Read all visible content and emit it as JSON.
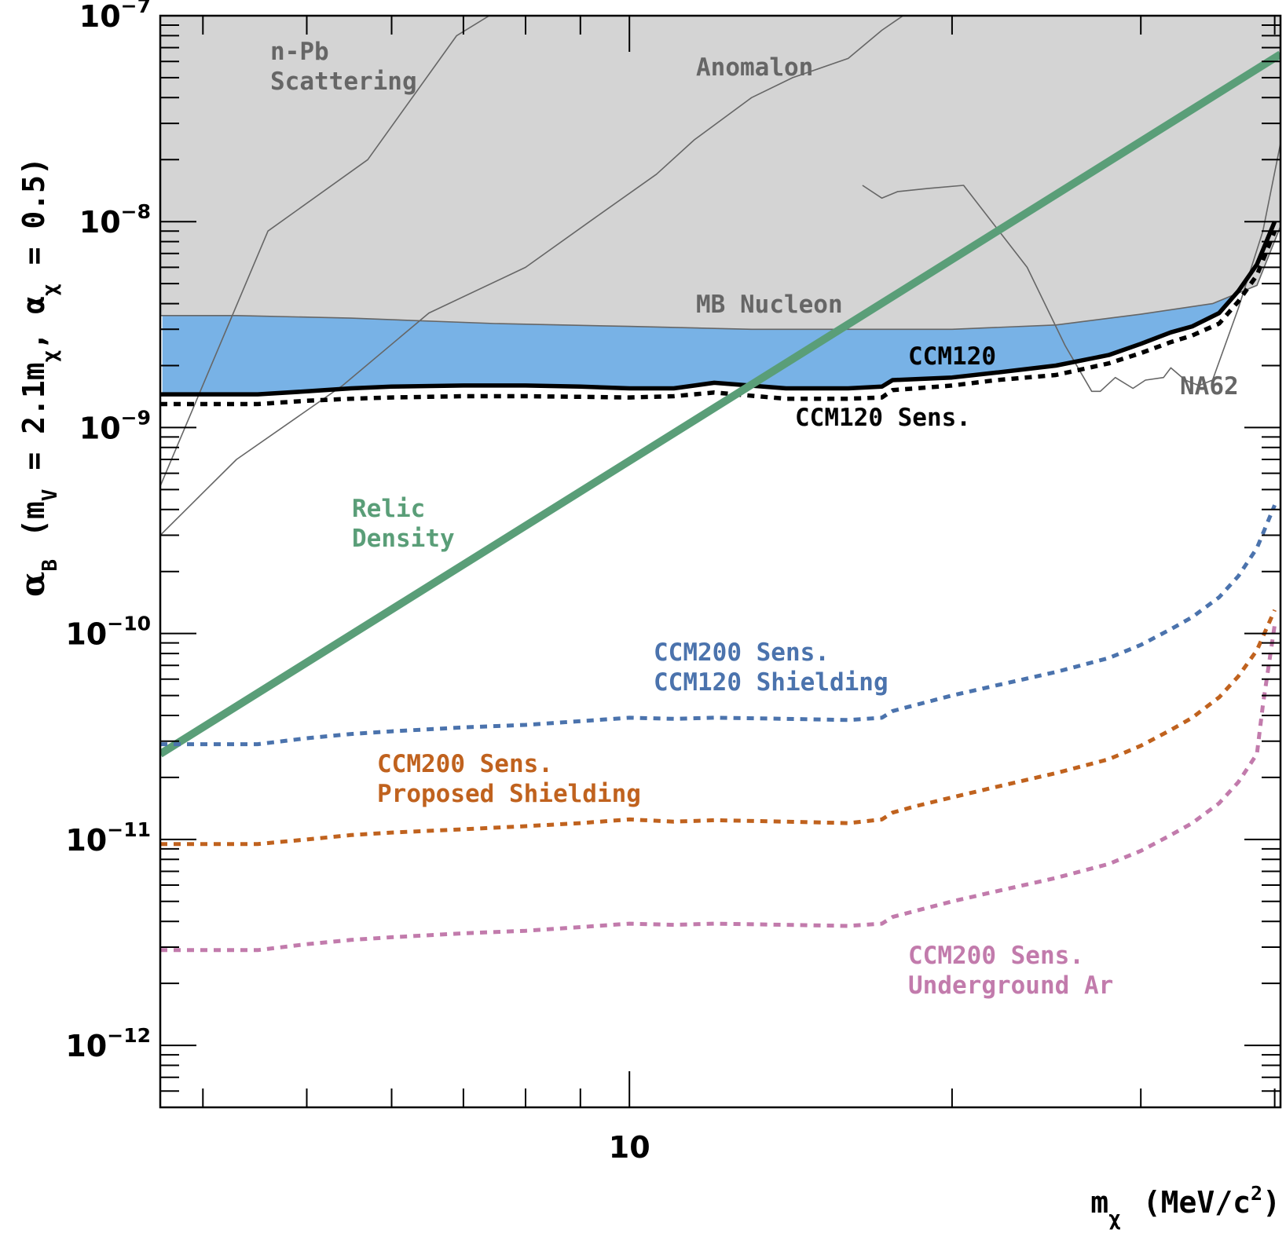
{
  "chart_data": {
    "type": "line",
    "title": "",
    "xlabel": "m",
    "xlabel_sub": "χ",
    "xlabel_units": "(MeV/c",
    "xlabel_units_sup": "2",
    "xlabel_units_end": ")",
    "ylabel_parts": {
      "alpha": "α",
      "alpha_sub": "B",
      "paren": "(m",
      "v_sub": "V",
      "middle": "= 2.1m",
      "chi_sub": "χ",
      "comma": ", α",
      "chi_sub2": "χ",
      "end": "= 0.5)"
    },
    "x_scale": "log",
    "y_scale": "log",
    "xlim": [
      3.65,
      40.5
    ],
    "ylim": [
      5e-13,
      1e-07
    ],
    "x_tick_labels": [
      {
        "value": 10,
        "label": "10"
      }
    ],
    "y_tick_labels": [
      {
        "value": 1e-07,
        "base": "10",
        "exp": "−7"
      },
      {
        "value": 1e-08,
        "base": "10",
        "exp": "−8"
      },
      {
        "value": 1e-09,
        "base": "10",
        "exp": "−9"
      },
      {
        "value": 1e-10,
        "base": "10",
        "exp": "−10"
      },
      {
        "value": 1e-11,
        "base": "10",
        "exp": "−11"
      },
      {
        "value": 1e-12,
        "base": "10",
        "exp": "−12"
      }
    ],
    "colors": {
      "excluded_fill": "#d4d4d4",
      "excluded_edge": "#666666",
      "ccm120_fill": "#78b2e6",
      "relic": "#5a9e78",
      "ccm120": "#000000",
      "ccm200_ccm120_shielding": "#4b73ad",
      "ccm200_proposed_shielding": "#c0621e",
      "ccm200_underground_ar": "#c27bac",
      "grey_label": "#666666"
    },
    "excluded_region": {
      "name": "",
      "x": [
        3.65,
        3.8,
        4.3,
        5.5,
        7.5,
        10.0,
        13.0,
        16.0,
        20.0,
        25.0,
        30.0,
        35.0,
        38.5,
        40.5
      ],
      "y": [
        3.5e-09,
        3.5e-09,
        3.5e-09,
        3.4e-09,
        3.2e-09,
        3.1e-09,
        3e-09,
        3e-09,
        3e-09,
        3.15e-09,
        3.55e-09,
        4e-09,
        4.9e-09,
        9.5e-09
      ]
    },
    "series": [
      {
        "name": "n-Pb Scattering",
        "style": "thin",
        "x": [
          3.65,
          4.6,
          5.7,
          6.9,
          7.4
        ],
        "y": [
          5.2e-10,
          9e-09,
          2e-08,
          8e-08,
          1e-07
        ]
      },
      {
        "name": "Anomalon",
        "style": "thin",
        "x": [
          3.65,
          4.3,
          5.4,
          6.5,
          8.0,
          9.3,
          10.6,
          11.5,
          13.0,
          14.2,
          16.0,
          17.2,
          18.0
        ],
        "y": [
          3e-10,
          7e-10,
          1.6e-09,
          3.6e-09,
          6e-09,
          1.05e-08,
          1.7e-08,
          2.5e-08,
          4e-08,
          5e-08,
          6.2e-08,
          8.5e-08,
          1e-07
        ]
      },
      {
        "name": "MB Nucleon",
        "style": "thin",
        "x": [
          3.65,
          4.3,
          5.5,
          7.5,
          10.0,
          13.0,
          16.0,
          20.0,
          25.0,
          30.0,
          35.0,
          38.5,
          40.5
        ],
        "y": [
          3.5e-09,
          3.5e-09,
          3.4e-09,
          3.2e-09,
          3.1e-09,
          3e-09,
          3e-09,
          3e-09,
          3.15e-09,
          3.55e-09,
          4e-09,
          4.9e-09,
          9.5e-09
        ]
      },
      {
        "name": "NA62",
        "style": "thin",
        "x": [
          16.5,
          17.2,
          17.8,
          19.0,
          20.5,
          23.5,
          25.5,
          27.0,
          27.5,
          28.4,
          29.5,
          30.3,
          31.5,
          32.0,
          33.0,
          34.0,
          35.0,
          37.0,
          39.0,
          40.5
        ],
        "y": [
          1.5e-08,
          1.3e-08,
          1.4e-08,
          1.45e-08,
          1.5e-08,
          6e-09,
          2.5e-09,
          1.5e-09,
          1.5e-09,
          1.75e-09,
          1.55e-09,
          1.7e-09,
          1.75e-09,
          1.95e-09,
          1.7e-09,
          1.6e-09,
          1.7e-09,
          3.8e-09,
          9e-09,
          2.4e-08
        ]
      },
      {
        "name": "CCM120",
        "style": "solid-thick",
        "x": [
          3.65,
          4.5,
          5.0,
          5.5,
          6.0,
          7.0,
          8.0,
          9.0,
          10.0,
          11.0,
          12.0,
          14.0,
          16.0,
          17.2,
          17.6,
          18.5,
          20.0,
          22.0,
          25.0,
          28.0,
          30.0,
          32.0,
          33.5,
          35.5,
          37.0,
          38.5,
          40.0
        ],
        "y": [
          1.45e-09,
          1.45e-09,
          1.5e-09,
          1.55e-09,
          1.58e-09,
          1.6e-09,
          1.6e-09,
          1.58e-09,
          1.55e-09,
          1.55e-09,
          1.65e-09,
          1.55e-09,
          1.55e-09,
          1.58e-09,
          1.7e-09,
          1.72e-09,
          1.75e-09,
          1.85e-09,
          2e-09,
          2.25e-09,
          2.55e-09,
          2.9e-09,
          3.1e-09,
          3.6e-09,
          4.6e-09,
          6.2e-09,
          1e-08
        ]
      },
      {
        "name": "CCM120 Sens.",
        "style": "dotted-thick",
        "x": [
          3.65,
          4.5,
          5.0,
          5.5,
          6.0,
          7.0,
          8.0,
          9.0,
          10.0,
          11.0,
          12.0,
          14.0,
          16.0,
          17.2,
          17.6,
          18.5,
          20.0,
          22.0,
          25.0,
          28.0,
          30.0,
          32.0,
          33.5,
          35.5,
          37.0,
          38.5,
          40.0
        ],
        "y": [
          1.3e-09,
          1.3e-09,
          1.35e-09,
          1.38e-09,
          1.4e-09,
          1.42e-09,
          1.42e-09,
          1.41e-09,
          1.4e-09,
          1.42e-09,
          1.48e-09,
          1.38e-09,
          1.38e-09,
          1.4e-09,
          1.52e-09,
          1.55e-09,
          1.6e-09,
          1.7e-09,
          1.8e-09,
          2.05e-09,
          2.3e-09,
          2.6e-09,
          2.8e-09,
          3.2e-09,
          4.1e-09,
          5.5e-09,
          9e-09
        ]
      },
      {
        "name": "Relic Density",
        "style": "solid-thick",
        "x": [
          3.65,
          40.5
        ],
        "y": [
          2.6e-11,
          6.5e-08
        ]
      },
      {
        "name": "CCM200 Sens. CCM120 Shielding",
        "style": "dotted",
        "x": [
          3.65,
          4.5,
          5.0,
          5.5,
          6.0,
          7.0,
          8.0,
          9.0,
          10.0,
          11.0,
          12.0,
          14.0,
          16.0,
          17.2,
          17.6,
          18.5,
          20.0,
          22.0,
          25.0,
          28.0,
          30.0,
          32.0,
          33.5,
          35.5,
          37.0,
          38.5,
          40.0
        ],
        "y": [
          2.9e-11,
          2.9e-11,
          3.1e-11,
          3.25e-11,
          3.35e-11,
          3.5e-11,
          3.6e-11,
          3.75e-11,
          3.9e-11,
          3.85e-11,
          3.9e-11,
          3.85e-11,
          3.8e-11,
          3.9e-11,
          4.2e-11,
          4.5e-11,
          5e-11,
          5.6e-11,
          6.5e-11,
          7.6e-11,
          8.8e-11,
          1.05e-10,
          1.2e-10,
          1.5e-10,
          1.9e-10,
          2.6e-10,
          4.2e-10
        ]
      },
      {
        "name": "CCM200 Sens. Proposed Shielding",
        "style": "dotted",
        "x": [
          3.65,
          4.5,
          5.0,
          5.5,
          6.0,
          7.0,
          8.0,
          9.0,
          10.0,
          11.0,
          12.0,
          14.0,
          16.0,
          17.2,
          17.6,
          18.5,
          20.0,
          22.0,
          25.0,
          28.0,
          30.0,
          32.0,
          33.5,
          35.5,
          37.0,
          38.5,
          40.0
        ],
        "y": [
          9.5e-12,
          9.5e-12,
          1e-11,
          1.05e-11,
          1.08e-11,
          1.12e-11,
          1.16e-11,
          1.2e-11,
          1.25e-11,
          1.22e-11,
          1.24e-11,
          1.22e-11,
          1.2e-11,
          1.25e-11,
          1.35e-11,
          1.45e-11,
          1.6e-11,
          1.8e-11,
          2.1e-11,
          2.45e-11,
          2.85e-11,
          3.4e-11,
          3.9e-11,
          4.9e-11,
          6.2e-11,
          8.3e-11,
          1.3e-10
        ]
      },
      {
        "name": "CCM200 Sens. Underground Ar",
        "style": "dotted",
        "x": [
          3.65,
          4.5,
          5.0,
          5.5,
          6.0,
          7.0,
          8.0,
          9.0,
          10.0,
          11.0,
          12.0,
          14.0,
          16.0,
          17.2,
          17.6,
          18.5,
          20.0,
          22.0,
          25.0,
          28.0,
          30.0,
          32.0,
          33.5,
          35.5,
          37.0,
          38.5,
          39.0,
          40.0
        ],
        "y": [
          2.9e-12,
          2.9e-12,
          3.1e-12,
          3.25e-12,
          3.35e-12,
          3.5e-12,
          3.6e-12,
          3.75e-12,
          3.9e-12,
          3.85e-12,
          3.9e-12,
          3.85e-12,
          3.8e-12,
          3.9e-12,
          4.2e-12,
          4.5e-12,
          5e-12,
          5.6e-12,
          6.5e-12,
          7.6e-12,
          8.8e-12,
          1.05e-11,
          1.2e-11,
          1.5e-11,
          1.9e-11,
          2.6e-11,
          4.5e-11,
          1.1e-10
        ]
      }
    ],
    "annotations": [
      {
        "key": "npb",
        "lines": [
          "n-Pb",
          "Scattering"
        ],
        "color": "#666666"
      },
      {
        "key": "anomalon",
        "lines": [
          "Anomalon"
        ],
        "color": "#666666"
      },
      {
        "key": "mbn",
        "lines": [
          "MB Nucleon"
        ],
        "color": "#666666"
      },
      {
        "key": "ccm120",
        "lines": [
          "CCM120"
        ],
        "color": "#000000"
      },
      {
        "key": "na62",
        "lines": [
          "NA62"
        ],
        "color": "#666666"
      },
      {
        "key": "ccm120sens",
        "lines": [
          "CCM120 Sens."
        ],
        "color": "#000000"
      },
      {
        "key": "relic",
        "lines": [
          "Relic",
          "Density"
        ],
        "color": "#5a9e78"
      },
      {
        "key": "ccm200a",
        "lines": [
          "CCM200 Sens.",
          "CCM120 Shielding"
        ],
        "color": "#4b73ad"
      },
      {
        "key": "ccm200b",
        "lines": [
          "CCM200 Sens.",
          "Proposed Shielding"
        ],
        "color": "#c0621e"
      },
      {
        "key": "ccm200c",
        "lines": [
          "CCM200 Sens.",
          "Underground Ar"
        ],
        "color": "#c27bac"
      }
    ]
  }
}
